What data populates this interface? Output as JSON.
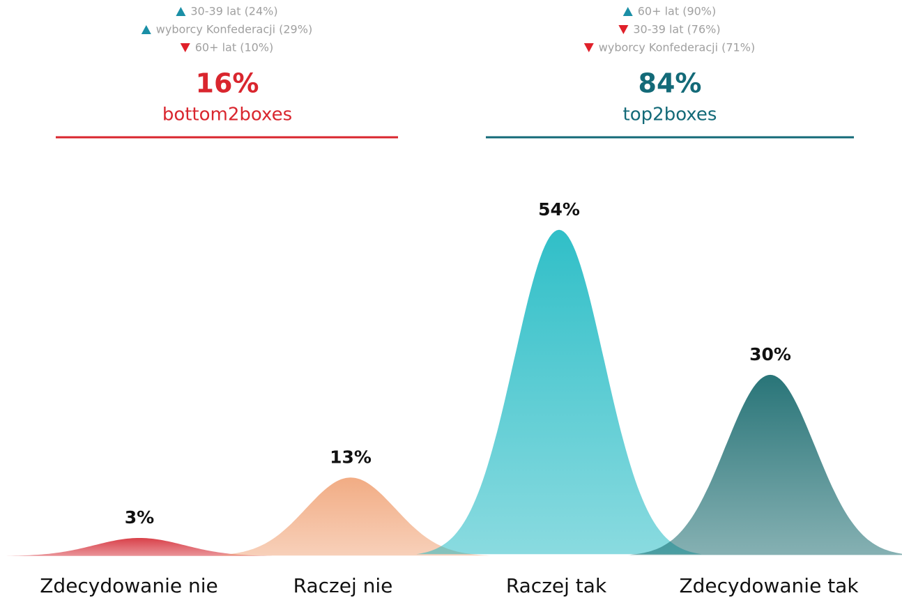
{
  "chart_data": {
    "type": "bell",
    "categories": [
      "Zdecydowanie nie",
      "Raczej nie",
      "Raczej tak",
      "Zdecydowanie tak"
    ],
    "values": [
      3,
      13,
      54,
      30
    ],
    "value_labels": [
      "3%",
      "13%",
      "54%",
      "30%"
    ],
    "colors": [
      "#d42a34",
      "#f0a275",
      "#17b7c1",
      "#0f6468"
    ],
    "summaries": [
      {
        "value": 16,
        "value_label": "16%",
        "label": "bottom2boxes",
        "color": "#d9262e",
        "notes": [
          {
            "direction": "up",
            "text": "30-39 lat (24%)"
          },
          {
            "direction": "up",
            "text": "wyborcy Konfederacji (29%)"
          },
          {
            "direction": "down",
            "text": "60+ lat (10%)"
          }
        ]
      },
      {
        "value": 84,
        "value_label": "84%",
        "label": "top2boxes",
        "color": "#136a78",
        "notes": [
          {
            "direction": "up",
            "text": "60+ lat (90%)"
          },
          {
            "direction": "down",
            "text": "30-39 lat (76%)"
          },
          {
            "direction": "down",
            "text": "wyborcy Konfederacji (71%)"
          }
        ]
      }
    ]
  }
}
